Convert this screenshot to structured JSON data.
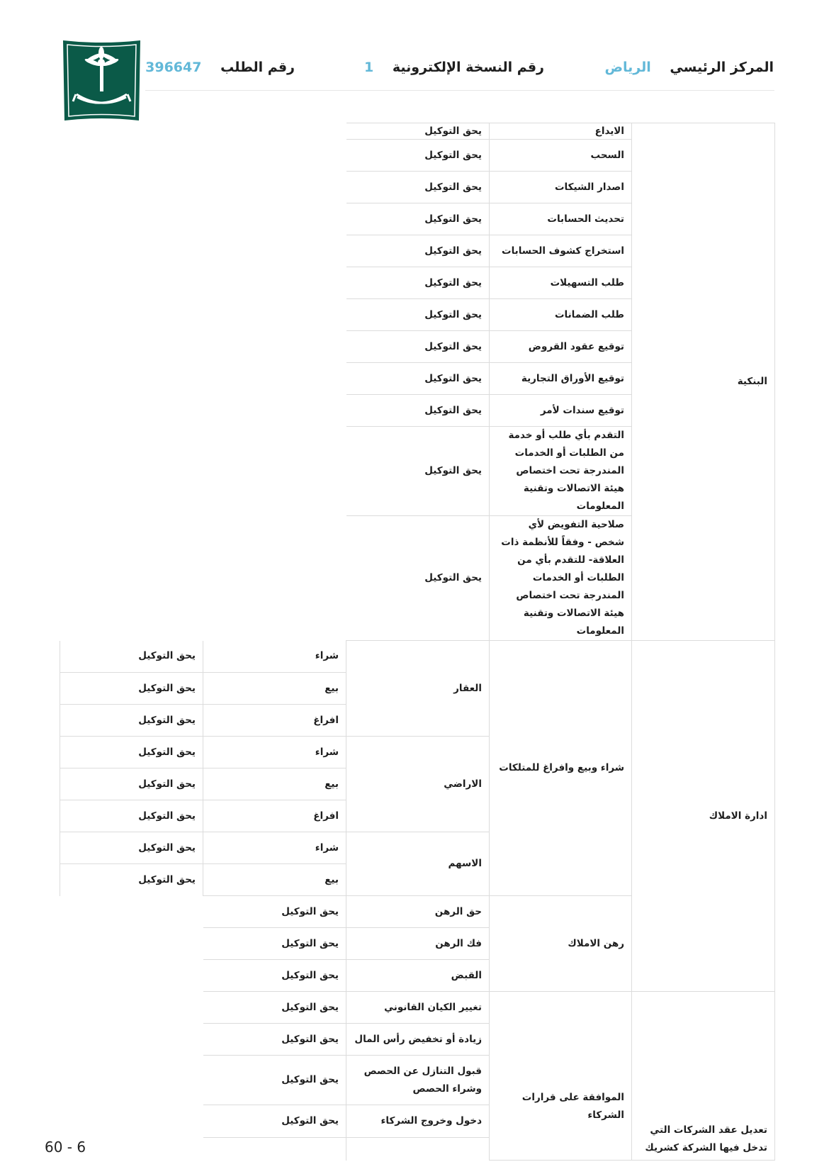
{
  "header": {
    "center_label": "المركز الرئيسي",
    "center_value": "الرياض",
    "copy_label": "رقم النسخة الإلكترونية",
    "copy_value": "1",
    "request_label": "رقم الطلب",
    "request_value": "396647"
  },
  "colors": {
    "accent": "#62b8d8",
    "logo_green": "#0b5a48",
    "border": "#dcdcdc"
  },
  "banking": {
    "category": "البنكية",
    "rows": [
      {
        "item": "الايداع",
        "value": "يحق التوكيل"
      },
      {
        "item": "السحب",
        "value": "يحق التوكيل"
      },
      {
        "item": "اصدار الشيكات",
        "value": "يحق التوكيل"
      },
      {
        "item": "تحديث الحسابات",
        "value": "يحق التوكيل"
      },
      {
        "item": "استخراج كشوف الحسابات",
        "value": "يحق التوكيل"
      },
      {
        "item": "طلب التسهيلات",
        "value": "يحق التوكيل"
      },
      {
        "item": "طلب الضمانات",
        "value": "يحق التوكيل"
      },
      {
        "item": "توقيع عقود القروض",
        "value": "يحق التوكيل"
      },
      {
        "item": "توقيع الأوراق التجارية",
        "value": "يحق التوكيل"
      },
      {
        "item": "توقيع سندات لأمر",
        "value": "يحق التوكيل"
      },
      {
        "item": "التقدم بأي طلب أو خدمة من الطلبات أو الخدمات المندرجة تحت اختصاص هيئة الاتصالات وتقنية المعلومات",
        "value": "يحق التوكيل"
      },
      {
        "item": "صلاحية التفويض لأي شخص - وفقاً للأنظمة ذات العلاقة- للتقدم بأي من الطلبات أو الخدمات المندرجة تحت اختصاص هيئة الاتصالات وتقنية المعلومات",
        "value": "يحق التوكيل"
      }
    ]
  },
  "property": {
    "category": "ادارة الاملاك",
    "trade": {
      "label": "شراء وبيع وافراغ للمتلكات",
      "groups": [
        {
          "label": "العقار",
          "rows": [
            {
              "action": "شراء",
              "value": "يحق التوكيل"
            },
            {
              "action": "بيع",
              "value": "يحق التوكيل"
            },
            {
              "action": "افراغ",
              "value": "يحق التوكيل"
            }
          ]
        },
        {
          "label": "الاراضي",
          "rows": [
            {
              "action": "شراء",
              "value": "يحق التوكيل"
            },
            {
              "action": "بيع",
              "value": "يحق التوكيل"
            },
            {
              "action": "افراغ",
              "value": "يحق التوكيل"
            }
          ]
        },
        {
          "label": "الاسهم",
          "rows": [
            {
              "action": "شراء",
              "value": "يحق التوكيل"
            },
            {
              "action": "بيع",
              "value": "يحق التوكيل"
            }
          ]
        }
      ]
    },
    "mortgage": {
      "label": "رهن الاملاك",
      "rows": [
        {
          "item": "حق الرهن",
          "value": "يحق التوكيل"
        },
        {
          "item": "فك الرهن",
          "value": "يحق التوكيل"
        },
        {
          "item": "القبض",
          "value": "يحق التوكيل"
        }
      ]
    }
  },
  "companies": {
    "category": "تعديل عقد الشركات التي تدخل فيها الشركة كشريك",
    "sub": "الموافقة على قرارات الشركاء",
    "rows": [
      {
        "item": "تغيير الكيان القانوني",
        "value": "يحق التوكيل"
      },
      {
        "item": "زيادة أو تخفيض رأس المال",
        "value": "يحق التوكيل"
      },
      {
        "item": "قبول التنازل عن الحصص وشراء الحصص",
        "value": "يحق التوكيل"
      },
      {
        "item": "دخول وخروج الشركاء",
        "value": "يحق التوكيل"
      }
    ]
  },
  "footer": {
    "page": "60 - 6"
  }
}
